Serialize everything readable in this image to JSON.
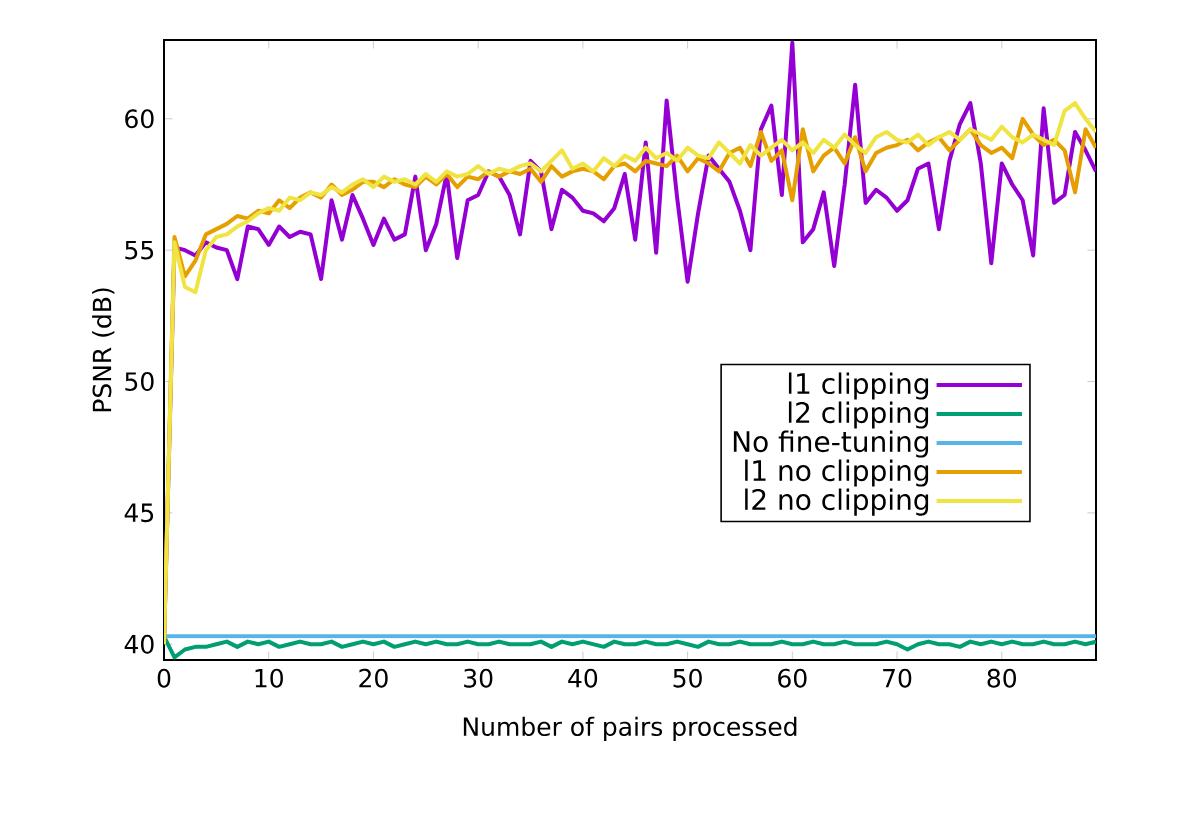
{
  "chart_data": {
    "type": "line",
    "xlabel": "Number of pairs processed",
    "ylabel": "PSNR (dB)",
    "x": [
      0,
      1,
      2,
      3,
      4,
      5,
      6,
      7,
      8,
      9,
      10,
      11,
      12,
      13,
      14,
      15,
      16,
      17,
      18,
      19,
      20,
      21,
      22,
      23,
      24,
      25,
      26,
      27,
      28,
      29,
      30,
      31,
      32,
      33,
      34,
      35,
      36,
      37,
      38,
      39,
      40,
      41,
      42,
      43,
      44,
      45,
      46,
      47,
      48,
      49,
      50,
      51,
      52,
      53,
      54,
      55,
      56,
      57,
      58,
      59,
      60,
      61,
      62,
      63,
      64,
      65,
      66,
      67,
      68,
      69,
      70,
      71,
      72,
      73,
      74,
      75,
      76,
      77,
      78,
      79,
      80,
      81,
      82,
      83,
      84,
      85,
      86,
      87,
      88,
      89
    ],
    "xlim": [
      0,
      89
    ],
    "ylim": [
      39.4,
      63
    ],
    "xticks": [
      0,
      10,
      20,
      30,
      40,
      50,
      60,
      70,
      80
    ],
    "yticks": [
      40,
      45,
      50,
      55,
      60
    ],
    "legend": "right",
    "marker": "none",
    "line_style": "solid",
    "grid": false,
    "series": [
      {
        "name": "l1 clipping",
        "color": "#9400d3",
        "values": [
          40.0,
          55.1,
          55.0,
          54.8,
          55.3,
          55.1,
          55.0,
          53.9,
          55.9,
          55.8,
          55.2,
          55.9,
          55.5,
          55.7,
          55.6,
          53.9,
          56.9,
          55.4,
          57.1,
          56.2,
          55.2,
          56.2,
          55.4,
          55.6,
          57.8,
          55.0,
          56.0,
          57.9,
          54.7,
          56.9,
          57.1,
          58.0,
          57.8,
          57.1,
          55.6,
          58.4,
          58.0,
          55.8,
          57.3,
          57.0,
          56.5,
          56.4,
          56.1,
          56.6,
          57.9,
          55.4,
          59.1,
          54.9,
          60.7,
          57.0,
          53.8,
          56.4,
          58.6,
          58.1,
          57.6,
          56.5,
          55.0,
          59.6,
          60.5,
          57.1,
          62.9,
          55.3,
          55.8,
          57.2,
          54.4,
          57.5,
          61.3,
          56.8,
          57.3,
          57.0,
          56.5,
          56.9,
          58.1,
          58.3,
          55.8,
          58.4,
          59.8,
          60.6,
          58.3,
          54.5,
          58.3,
          57.5,
          56.9,
          54.8,
          60.4,
          56.8,
          57.1,
          59.5,
          58.8,
          58.0
        ]
      },
      {
        "name": "l2 clipping",
        "color": "#009e73",
        "values": [
          40.3,
          39.5,
          39.8,
          39.9,
          39.9,
          40.0,
          40.1,
          39.9,
          40.1,
          40.0,
          40.1,
          39.9,
          40.0,
          40.1,
          40.0,
          40.0,
          40.1,
          39.9,
          40.0,
          40.1,
          40.0,
          40.1,
          39.9,
          40.0,
          40.1,
          40.0,
          40.1,
          40.0,
          40.0,
          40.1,
          40.0,
          40.0,
          40.1,
          40.0,
          40.0,
          40.0,
          40.1,
          39.9,
          40.1,
          40.0,
          40.1,
          40.0,
          39.9,
          40.1,
          40.0,
          40.0,
          40.1,
          40.0,
          40.0,
          40.1,
          40.0,
          39.9,
          40.1,
          40.0,
          40.0,
          40.1,
          40.0,
          40.0,
          40.0,
          40.1,
          40.0,
          40.0,
          40.1,
          40.0,
          40.0,
          40.1,
          40.0,
          40.0,
          40.0,
          40.1,
          40.0,
          39.8,
          40.0,
          40.1,
          40.0,
          40.0,
          39.9,
          40.1,
          40.0,
          40.1,
          40.0,
          40.1,
          40.0,
          40.0,
          40.1,
          40.0,
          40.0,
          40.1,
          40.0,
          40.1
        ]
      },
      {
        "name": "No fine-tuning",
        "color": "#56b4e9",
        "values": [
          40.3,
          40.3,
          40.3,
          40.3,
          40.3,
          40.3,
          40.3,
          40.3,
          40.3,
          40.3,
          40.3,
          40.3,
          40.3,
          40.3,
          40.3,
          40.3,
          40.3,
          40.3,
          40.3,
          40.3,
          40.3,
          40.3,
          40.3,
          40.3,
          40.3,
          40.3,
          40.3,
          40.3,
          40.3,
          40.3,
          40.3,
          40.3,
          40.3,
          40.3,
          40.3,
          40.3,
          40.3,
          40.3,
          40.3,
          40.3,
          40.3,
          40.3,
          40.3,
          40.3,
          40.3,
          40.3,
          40.3,
          40.3,
          40.3,
          40.3,
          40.3,
          40.3,
          40.3,
          40.3,
          40.3,
          40.3,
          40.3,
          40.3,
          40.3,
          40.3,
          40.3,
          40.3,
          40.3,
          40.3,
          40.3,
          40.3,
          40.3,
          40.3,
          40.3,
          40.3,
          40.3,
          40.3,
          40.3,
          40.3,
          40.3,
          40.3,
          40.3,
          40.3,
          40.3,
          40.3,
          40.3,
          40.3,
          40.3,
          40.3,
          40.3,
          40.3,
          40.3,
          40.3,
          40.3,
          40.3
        ]
      },
      {
        "name": "l1 no clipping",
        "color": "#e69f00",
        "values": [
          40.0,
          55.5,
          54.0,
          54.6,
          55.6,
          55.8,
          56.0,
          56.3,
          56.2,
          56.5,
          56.4,
          56.9,
          56.6,
          57.0,
          57.2,
          57.0,
          57.5,
          57.1,
          57.3,
          57.6,
          57.6,
          57.4,
          57.7,
          57.5,
          57.4,
          57.8,
          57.5,
          57.9,
          57.4,
          57.8,
          57.7,
          58.0,
          57.8,
          58.0,
          57.9,
          58.1,
          57.6,
          58.2,
          57.8,
          58.0,
          58.1,
          58.0,
          57.7,
          58.2,
          58.3,
          58.0,
          58.4,
          58.3,
          58.2,
          58.6,
          58.0,
          58.5,
          58.3,
          58.0,
          58.7,
          58.9,
          58.2,
          59.5,
          58.4,
          58.8,
          56.9,
          59.6,
          58.0,
          58.6,
          58.9,
          58.3,
          59.3,
          58.0,
          58.7,
          58.9,
          59.0,
          59.2,
          58.8,
          59.1,
          59.3,
          58.8,
          59.2,
          59.6,
          59.0,
          58.7,
          58.9,
          58.5,
          60.0,
          59.4,
          59.0,
          59.2,
          58.8,
          57.2,
          59.6,
          58.9
        ]
      },
      {
        "name": "l2 no clipping",
        "color": "#f0e442",
        "values": [
          40.0,
          55.3,
          53.6,
          53.4,
          55.0,
          55.5,
          55.6,
          55.9,
          56.1,
          56.4,
          56.6,
          56.5,
          57.0,
          56.9,
          57.2,
          57.1,
          57.4,
          57.2,
          57.5,
          57.7,
          57.4,
          57.8,
          57.6,
          57.7,
          57.5,
          57.9,
          57.6,
          58.0,
          57.8,
          57.9,
          58.2,
          57.9,
          58.1,
          58.0,
          58.2,
          58.3,
          58.0,
          58.4,
          58.8,
          58.1,
          58.3,
          58.0,
          58.5,
          58.2,
          58.6,
          58.4,
          58.9,
          58.5,
          58.7,
          58.4,
          58.9,
          58.6,
          58.5,
          59.1,
          58.7,
          58.3,
          59.0,
          58.6,
          58.9,
          59.2,
          58.8,
          59.1,
          58.7,
          59.2,
          58.9,
          59.4,
          59.0,
          58.7,
          59.3,
          59.5,
          59.2,
          59.1,
          59.4,
          59.0,
          59.3,
          59.5,
          59.2,
          59.6,
          59.4,
          59.2,
          59.7,
          59.3,
          59.1,
          59.4,
          59.2,
          59.0,
          60.3,
          60.6,
          60.0,
          59.5
        ]
      }
    ]
  }
}
